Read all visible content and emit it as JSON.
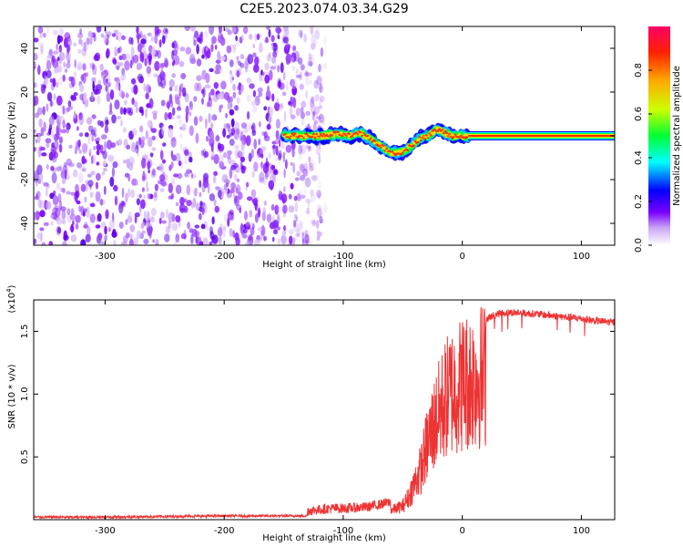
{
  "title": "C2E5.2023.074.03.34.G29",
  "chart_data": [
    {
      "type": "heatmap",
      "xlabel": "Height of straight line (km)",
      "ylabel": "Frequency (Hz)",
      "xlim": [
        -360,
        128
      ],
      "ylim": [
        -50,
        50
      ],
      "xticks": [
        -300,
        -200,
        -100,
        0,
        100
      ],
      "yticks": [
        -40,
        -20,
        0,
        20,
        40
      ],
      "colorbar": {
        "label": "Normalized spectral amplitude",
        "range": [
          0,
          1
        ],
        "ticks": [
          "0.0",
          "0.2",
          "0.4",
          "0.6",
          "0.8"
        ],
        "tick_values": [
          0,
          0.2,
          0.4,
          0.6,
          0.8
        ]
      },
      "noise_region_x": [
        -360,
        -115
      ],
      "trace": {
        "x": [
          -150,
          -130,
          -115,
          -105,
          -95,
          -85,
          -78,
          -70,
          -62,
          -55,
          -48,
          -42,
          -35,
          -28,
          -22,
          -16,
          -10,
          -4,
          5
        ],
        "y": [
          0,
          0,
          0,
          1,
          0,
          1,
          -1,
          -4,
          -7,
          -8,
          -7,
          -4,
          -1,
          0,
          3,
          2,
          0,
          0,
          0
        ],
        "constant_after_x": 5,
        "constant_y": 0
      }
    },
    {
      "type": "line",
      "xlabel": "Height of straight line (km)",
      "ylabel": "SNR (10 * v/v)",
      "y_multiplier": "(x10",
      "y_multiplier_exp": "4",
      "y_multiplier_close": ")",
      "xlim": [
        -360,
        128
      ],
      "ylim": [
        0,
        1.75
      ],
      "xticks": [
        -300,
        -200,
        -100,
        0,
        100
      ],
      "yticks": [
        "0.5",
        "1.0",
        "1.5"
      ],
      "ytick_values": [
        0.5,
        1.0,
        1.5
      ],
      "series": [
        {
          "color": "#ee3333",
          "x": [
            -360,
            -300,
            -200,
            -130,
            -110,
            -100,
            -80,
            -60,
            -50,
            -45,
            -40,
            -35,
            -30,
            -25,
            -20,
            -15,
            -10,
            -5,
            0,
            10,
            20,
            30,
            40,
            60,
            80,
            100,
            115,
            128
          ],
          "y": [
            0.02,
            0.02,
            0.03,
            0.03,
            0.05,
            0.05,
            0.06,
            0.1,
            0.15,
            0.25,
            0.4,
            0.55,
            0.8,
            1.0,
            1.15,
            1.3,
            1.4,
            1.45,
            1.5,
            1.55,
            1.6,
            1.64,
            1.65,
            1.64,
            1.62,
            1.6,
            1.58,
            1.57
          ]
        }
      ]
    }
  ]
}
